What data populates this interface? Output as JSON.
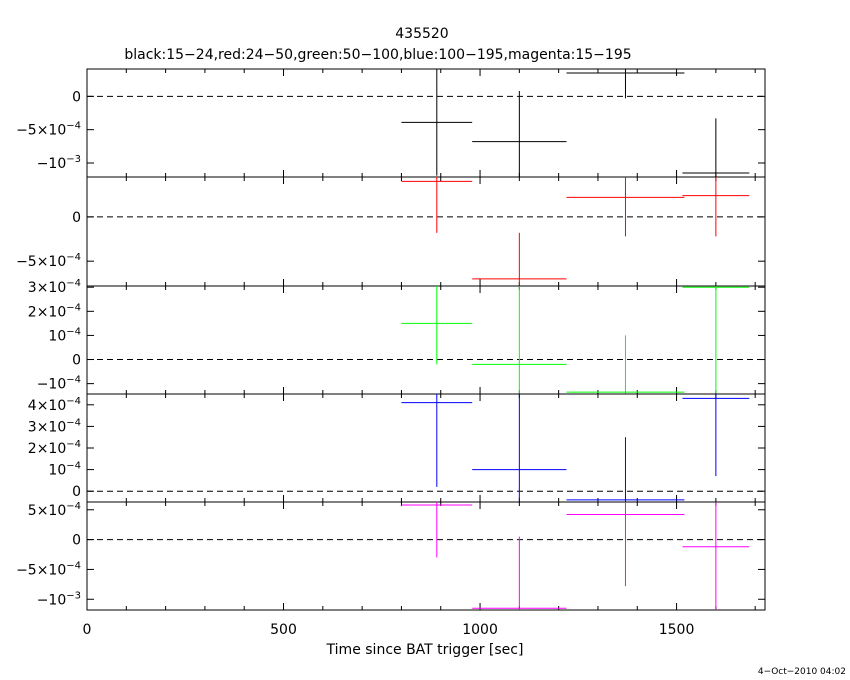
{
  "chart_data": {
    "type": "scatter",
    "title": "435520",
    "subtitle": "black:15−24,red:24−50,green:50−100,blue:100−195,magenta:15−195",
    "xlabel": "Time since BAT trigger [sec]",
    "ylabel": "",
    "xlim": [
      0,
      1725
    ],
    "x_ticks": [
      "0",
      "500",
      "1000",
      "1500"
    ],
    "grid": false,
    "timestamp": "4−Oct−2010 04:02",
    "panels": [
      {
        "name": "black:15−24",
        "color": "#000000",
        "ylim": [
          -0.00121,
          0.00041
        ],
        "y_ticks": [
          {
            "value": 0,
            "base": "0",
            "exp": ""
          },
          {
            "value": -0.0005,
            "base": "−5×10",
            "exp": "−4"
          },
          {
            "value": -0.001,
            "base": "−10",
            "exp": "−3"
          }
        ],
        "points": [
          {
            "x": 890,
            "xerr": 90,
            "y": -0.00039,
            "yerr": 0.0008
          },
          {
            "x": 1100,
            "xerr": 120,
            "y": -0.00068,
            "yerr": 0.00076
          },
          {
            "x": 1370,
            "xerr": 150,
            "y": 0.00035,
            "yerr": 0.00038
          },
          {
            "x": 1600,
            "xerr": 85,
            "y": -0.00115,
            "yerr": 0.00082
          }
        ]
      },
      {
        "name": "red:24−50",
        "color": "#ff0000",
        "ylim": [
          -0.00078,
          0.00045
        ],
        "y_ticks": [
          {
            "value": 0,
            "base": "0",
            "exp": ""
          },
          {
            "value": -0.0005,
            "base": "−5×10",
            "exp": "−4"
          }
        ],
        "points": [
          {
            "x": 890,
            "xerr": 90,
            "y": 0.0004,
            "yerr": 0.00058
          },
          {
            "x": 1100,
            "xerr": 120,
            "y": -0.0007,
            "yerr": 0.00052
          },
          {
            "x": 1370,
            "xerr": 150,
            "y": 0.00022,
            "yerr": 0.00044
          },
          {
            "x": 1600,
            "xerr": 85,
            "y": 0.00024,
            "yerr": 0.00046
          }
        ]
      },
      {
        "name": "green:50−100",
        "color": "#00ff00",
        "ylim": [
          -0.000143,
          0.000305
        ],
        "y_ticks": [
          {
            "value": 0.0003,
            "base": "3×10",
            "exp": "−4"
          },
          {
            "value": 0.0002,
            "base": "2×10",
            "exp": "−4"
          },
          {
            "value": 0.0001,
            "base": "10",
            "exp": "−4"
          },
          {
            "value": 0,
            "base": "0",
            "exp": ""
          },
          {
            "value": -0.0001,
            "base": "−10",
            "exp": "−4"
          }
        ],
        "points": [
          {
            "x": 890,
            "xerr": 90,
            "y": 0.00015,
            "yerr": 0.00017
          },
          {
            "x": 1100,
            "xerr": 120,
            "y": -2e-05,
            "yerr": 0.00033
          },
          {
            "x": 1370,
            "xerr": 150,
            "y": -0.000135,
            "yerr": 0.000235
          },
          {
            "x": 1600,
            "xerr": 85,
            "y": 0.0003,
            "yerr": 0.00044
          }
        ]
      },
      {
        "name": "blue:100−195",
        "color": "#0000ff",
        "ylim": [
          -5e-05,
          0.00045
        ],
        "y_ticks": [
          {
            "value": 0.0004,
            "base": "4×10",
            "exp": "−4"
          },
          {
            "value": 0.0003,
            "base": "3×10",
            "exp": "−4"
          },
          {
            "value": 0.0002,
            "base": "2×10",
            "exp": "−4"
          },
          {
            "value": 0.0001,
            "base": "10",
            "exp": "−4"
          },
          {
            "value": 0,
            "base": "0",
            "exp": ""
          }
        ],
        "points": [
          {
            "x": 890,
            "xerr": 90,
            "y": 0.00041,
            "yerr": 0.00039
          },
          {
            "x": 1100,
            "xerr": 120,
            "y": 0.0001,
            "yerr": 0.00036
          },
          {
            "x": 1370,
            "xerr": 150,
            "y": -4e-05,
            "yerr": 0.00029
          },
          {
            "x": 1600,
            "xerr": 85,
            "y": 0.00043,
            "yerr": 0.00036
          }
        ]
      },
      {
        "name": "magenta:15−195",
        "color": "#ff00ff",
        "ylim": [
          -0.00118,
          0.00063
        ],
        "y_ticks": [
          {
            "value": 0.0005,
            "base": "5×10",
            "exp": "−4"
          },
          {
            "value": 0,
            "base": "0",
            "exp": ""
          },
          {
            "value": -0.0005,
            "base": "−5×10",
            "exp": "−4"
          },
          {
            "value": -0.001,
            "base": "−10",
            "exp": "−3"
          }
        ],
        "points": [
          {
            "x": 890,
            "xerr": 90,
            "y": 0.00058,
            "yerr": 0.00088
          },
          {
            "x": 1100,
            "xerr": 120,
            "y": -0.00115,
            "yerr": 0.0012
          },
          {
            "x": 1370,
            "xerr": 150,
            "y": 0.00042,
            "yerr": 0.0012
          },
          {
            "x": 1600,
            "xerr": 85,
            "y": -0.00012,
            "yerr": 0.0011
          }
        ]
      }
    ]
  }
}
